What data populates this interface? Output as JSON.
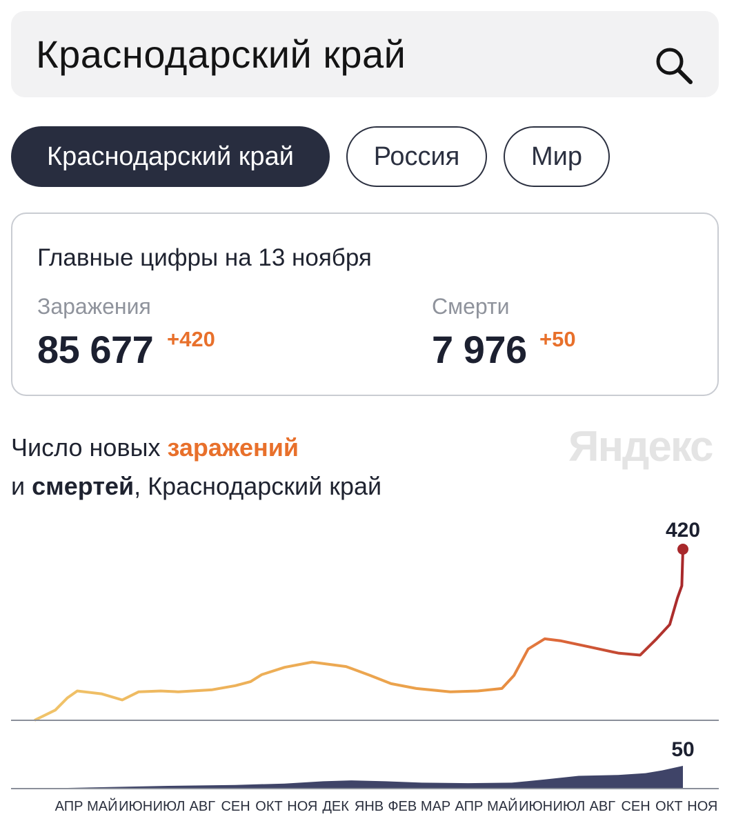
{
  "search": {
    "query": "Краснодарский край",
    "icon": "search-icon"
  },
  "filters": [
    {
      "label": "Краснодарский край",
      "active": true
    },
    {
      "label": "Россия",
      "active": false
    },
    {
      "label": "Мир",
      "active": false
    }
  ],
  "summary": {
    "title": "Главные цифры на 13 ноября",
    "infections": {
      "label": "Заражения",
      "value": "85 677",
      "delta": "+420"
    },
    "deaths": {
      "label": "Смерти",
      "value": "7 976",
      "delta": "+50"
    }
  },
  "chart_title": {
    "line1_prefix": "Число новых ",
    "line1_highlight": "заражений",
    "line2_prefix": "и ",
    "line2_highlight": "смертей",
    "line2_suffix": ", Краснодарский край"
  },
  "brand": "Яндекс",
  "colors": {
    "accent_orange": "#e8702b",
    "dark": "#282d3f",
    "infections_start": "#f0c46a",
    "infections_end": "#a8282b",
    "deaths_fill": "#3f4468"
  },
  "chart_data": [
    {
      "type": "line",
      "name": "infections",
      "x_tick_labels": [
        "АПР",
        "МАЙ",
        "ИЮН",
        "ИЮЛ",
        "АВГ",
        "СЕН",
        "ОКТ",
        "НОЯ",
        "ДЕК",
        "ЯНВ",
        "ФЕВ",
        "МАР",
        "АПР",
        "МАЙ",
        "ИЮН",
        "ИЮЛ",
        "АВГ",
        "СЕН",
        "ОКТ",
        "НОЯ"
      ],
      "x": [
        "2020-04-01",
        "2020-04-20",
        "2020-05-01",
        "2020-05-10",
        "2020-06-01",
        "2020-06-20",
        "2020-07-05",
        "2020-07-25",
        "2020-08-10",
        "2020-09-10",
        "2020-10-01",
        "2020-10-15",
        "2020-10-25",
        "2020-11-15",
        "2020-12-10",
        "2021-01-10",
        "2021-02-01",
        "2021-02-20",
        "2021-03-15",
        "2021-04-15",
        "2021-05-10",
        "2021-06-01",
        "2021-06-12",
        "2021-06-25",
        "2021-07-10",
        "2021-07-25",
        "2021-08-20",
        "2021-09-15",
        "2021-10-05",
        "2021-10-20",
        "2021-11-01",
        "2021-11-08",
        "2021-11-12",
        "2021-11-13"
      ],
      "values": [
        0,
        25,
        55,
        72,
        65,
        50,
        70,
        72,
        70,
        75,
        85,
        95,
        112,
        130,
        143,
        132,
        110,
        90,
        78,
        70,
        72,
        78,
        110,
        175,
        200,
        195,
        180,
        165,
        160,
        200,
        235,
        300,
        330,
        420
      ],
      "annotations": [
        {
          "x": "2021-11-13",
          "label": "420"
        }
      ]
    },
    {
      "type": "area",
      "name": "deaths",
      "x_tick_labels": [
        "АПР",
        "МАЙ",
        "ИЮН",
        "ИЮЛ",
        "АВГ",
        "СЕН",
        "ОКТ",
        "НОЯ",
        "ДЕК",
        "ЯНВ",
        "ФЕВ",
        "МАР",
        "АПР",
        "МАЙ",
        "ИЮН",
        "ИЮЛ",
        "АВГ",
        "СЕН",
        "ОКТ",
        "НОЯ"
      ],
      "x": [
        "2020-04-01",
        "2020-06-01",
        "2020-08-01",
        "2020-10-01",
        "2020-11-15",
        "2020-12-20",
        "2021-01-15",
        "2021-02-15",
        "2021-03-20",
        "2021-05-01",
        "2021-06-10",
        "2021-07-10",
        "2021-08-10",
        "2021-09-15",
        "2021-10-10",
        "2021-10-25",
        "2021-11-13"
      ],
      "values": [
        0,
        3,
        6,
        8,
        11,
        16,
        18,
        16,
        13,
        12,
        13,
        20,
        28,
        30,
        34,
        40,
        50
      ],
      "annotations": [
        {
          "x": "2021-11-13",
          "label": "50"
        }
      ]
    }
  ]
}
